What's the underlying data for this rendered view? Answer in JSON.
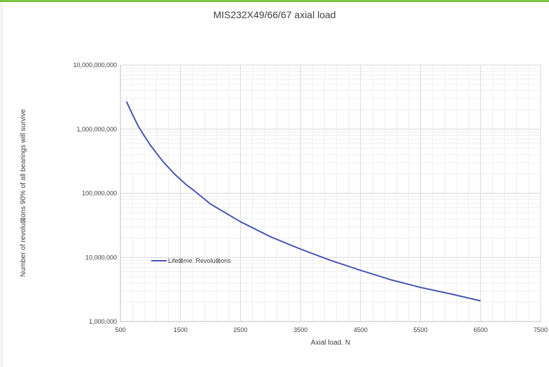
{
  "colors": {
    "accent_bar": "#7cc242",
    "series_line": "#4a55b4",
    "major_grid": "#d9d9d9",
    "minor_grid": "#efefef"
  },
  "chart_data": {
    "type": "line",
    "title": "MIS232X49/66/67 axial load",
    "xlabel": "Axial load. N",
    "ylabel": "Number of revolu\u0000ons 90% of all bearings will survive",
    "ylabel_display": "Number of revolu⊠ons 90% of all bearings will survive",
    "xlim": [
      500,
      7500
    ],
    "ylim": [
      1000000,
      10000000000
    ],
    "yscale": "log",
    "grid": true,
    "legend_placement": "left-lower",
    "x_ticks": [
      500,
      1500,
      2500,
      3500,
      4500,
      5500,
      6500,
      7500
    ],
    "x_tick_labels": [
      "500",
      "1500",
      "2500",
      "3500",
      "4500",
      "5500",
      "6500",
      "7500"
    ],
    "y_ticks": [
      1000000,
      10000000,
      100000000,
      1000000000,
      10000000000
    ],
    "y_tick_labels": [
      "1,000,000",
      "10,000,000",
      "100,000,000",
      "1,000,000,000",
      "10,000,000,000"
    ],
    "series": [
      {
        "name": "Life⊠me. Revolu⊠ons",
        "x": [
          600,
          700,
          800,
          900,
          1000,
          1200,
          1400,
          1600,
          1700,
          2000,
          2500,
          3000,
          3500,
          4000,
          4500,
          5000,
          5500,
          6000,
          6500
        ],
        "y": [
          2700000000,
          1700000000,
          1100000000,
          780000000,
          560000000,
          320000000,
          200000000,
          135000000,
          115000000,
          68000000,
          36000000,
          21000000,
          13500000,
          9000000,
          6300000,
          4500000,
          3400000,
          2700000,
          2100000
        ]
      }
    ]
  }
}
